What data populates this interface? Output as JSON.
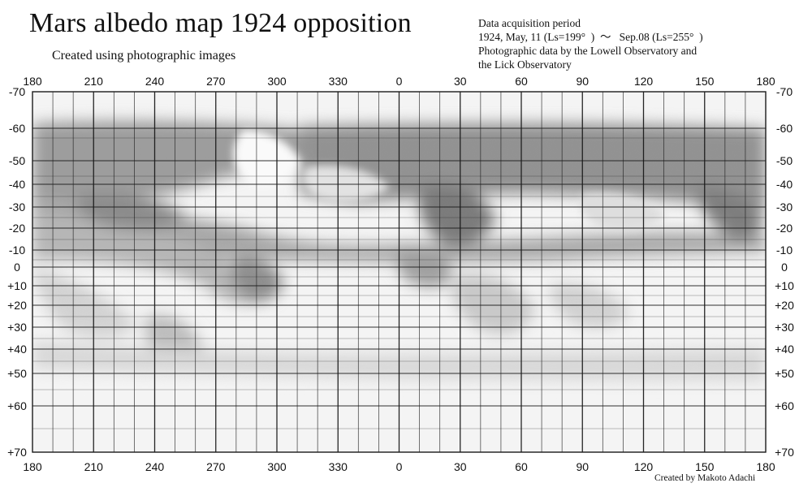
{
  "title": "Mars albedo map 1924 opposition",
  "subtitle": "Created using photographic images",
  "info": {
    "line1": "Data acquisition period",
    "line2": "1924, May, 11 (Ls=199°  )  ～   Sep.08 (Ls=255°  )",
    "line3": "Photographic data by the Lowell Observatory and",
    "line4": "the Lick Observatory"
  },
  "credit": "Created by Makoto Adachi",
  "longitude_labels": [
    "180",
    "210",
    "240",
    "270",
    "300",
    "330",
    "0",
    "30",
    "60",
    "90",
    "120",
    "150",
    "180"
  ],
  "latitude_labels": [
    "-70",
    "-60",
    "-50",
    "-40",
    "-30",
    "-20",
    "-10",
    "0",
    "+10",
    "+20",
    "+30",
    "+40",
    "+50",
    "+60",
    "+70"
  ],
  "colors": {
    "ink": "#111111",
    "grid": "#1a1a1a",
    "paper": "#f4f4f4"
  }
}
